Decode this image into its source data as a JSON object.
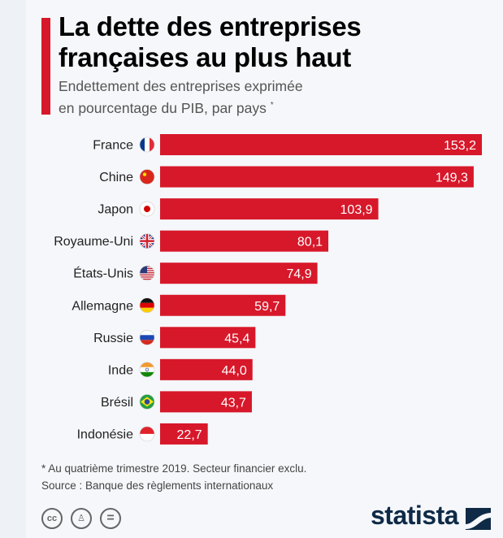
{
  "header": {
    "title_line1": "La dette des entreprises",
    "title_line2": "françaises au plus haut",
    "subtitle_line1": "Endettement des entreprises exprimée",
    "subtitle_line2": "en pourcentage du PIB, par pays",
    "subtitle_mark": "*"
  },
  "chart_data": {
    "type": "bar",
    "orientation": "horizontal",
    "title": "La dette des entreprises françaises au plus haut",
    "subtitle": "Endettement des entreprises exprimée en pourcentage du PIB, par pays *",
    "categories": [
      "France",
      "Chine",
      "Japon",
      "Royaume-Uni",
      "États-Unis",
      "Allemagne",
      "Russie",
      "Inde",
      "Brésil",
      "Indonésie"
    ],
    "values": [
      153.2,
      149.3,
      103.9,
      80.1,
      74.9,
      59.7,
      45.4,
      44.0,
      43.7,
      22.7
    ],
    "value_labels": [
      "153,2",
      "149,3",
      "103,9",
      "80,1",
      "74,9",
      "59,7",
      "45,4",
      "44,0",
      "43,7",
      "22,7"
    ],
    "flags": [
      "france",
      "china",
      "japan",
      "uk",
      "usa",
      "germany",
      "russia",
      "india",
      "brazil",
      "indonesia"
    ],
    "bar_color": "#d7182a",
    "grid": false,
    "xlim": [
      0,
      153.2
    ]
  },
  "footer": {
    "note": "* Au quatrième trimestre 2019. Secteur financier exclu.",
    "source": "Source : Banque des règlements internationaux",
    "logo": "statista",
    "license_icons": [
      "cc-icon",
      "by-icon",
      "nd-icon"
    ]
  }
}
